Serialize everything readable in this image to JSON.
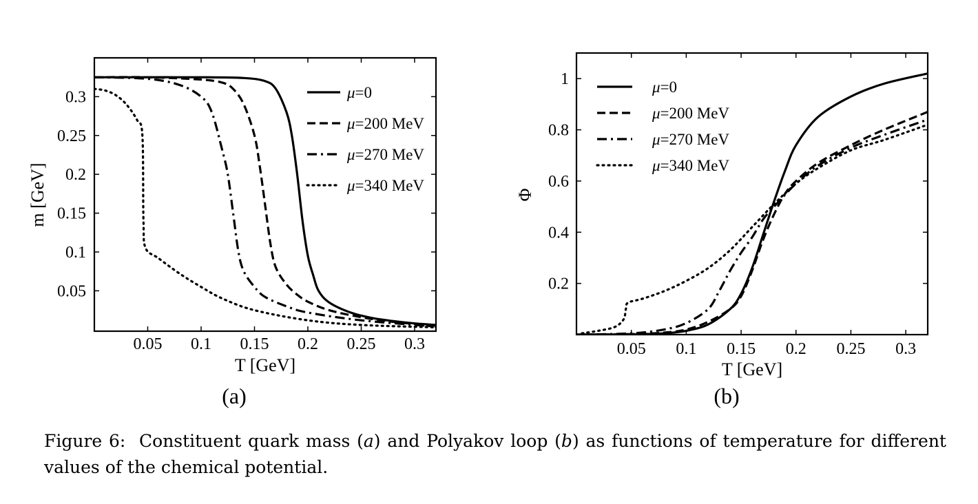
{
  "figure": {
    "caption": {
      "label": "Figure 6:",
      "part1": "Constituent quark mass (",
      "ref_a": "a",
      "part2": ") and Polyakov loop (",
      "ref_b": "b",
      "part3": ") as functions of temperature for different values of the chemical potential."
    }
  },
  "chart_data": [
    {
      "type": "line",
      "id": "a",
      "panel_label": "(a)",
      "xlabel": "T [GeV]",
      "ylabel": "m [GeV]",
      "xlim": [
        0.0,
        0.32
      ],
      "ylim": [
        -0.002,
        0.35
      ],
      "xticks": [
        0.05,
        0.1,
        0.15,
        0.2,
        0.25,
        0.3
      ],
      "xtick_labels": [
        "0.05",
        "0.1",
        "0.15",
        "0.2",
        "0.25",
        "0.3"
      ],
      "yticks": [
        0.05,
        0.1,
        0.15,
        0.2,
        0.25,
        0.3
      ],
      "ytick_labels": [
        "0.05",
        "0.1",
        "0.15",
        "0.2",
        "0.25",
        "0.3"
      ],
      "legend": "top-right",
      "series": [
        {
          "name": "μ=0",
          "mu": "μ",
          "value": "=0",
          "style": "solid",
          "x": [
            0,
            0.05,
            0.1,
            0.14,
            0.16,
            0.17,
            0.18,
            0.185,
            0.19,
            0.195,
            0.2,
            0.205,
            0.21,
            0.22,
            0.24,
            0.26,
            0.28,
            0.3,
            0.32
          ],
          "y": [
            0.325,
            0.325,
            0.325,
            0.324,
            0.32,
            0.31,
            0.28,
            0.25,
            0.2,
            0.14,
            0.095,
            0.07,
            0.05,
            0.035,
            0.022,
            0.015,
            0.011,
            0.008,
            0.006
          ]
        },
        {
          "name": "μ=200 MeV",
          "mu": "μ",
          "value": "=200 MeV",
          "style": "dashed",
          "x": [
            0,
            0.05,
            0.1,
            0.12,
            0.13,
            0.14,
            0.15,
            0.155,
            0.16,
            0.165,
            0.17,
            0.18,
            0.19,
            0.2,
            0.22,
            0.25,
            0.28,
            0.32
          ],
          "y": [
            0.325,
            0.325,
            0.322,
            0.318,
            0.31,
            0.29,
            0.25,
            0.21,
            0.16,
            0.11,
            0.08,
            0.058,
            0.045,
            0.036,
            0.025,
            0.016,
            0.01,
            0.005
          ]
        },
        {
          "name": "μ=270 MeV",
          "mu": "μ",
          "value": "=270 MeV",
          "style": "dashdot",
          "x": [
            0,
            0.05,
            0.08,
            0.1,
            0.11,
            0.12,
            0.125,
            0.13,
            0.135,
            0.14,
            0.15,
            0.16,
            0.18,
            0.2,
            0.25,
            0.32
          ],
          "y": [
            0.325,
            0.323,
            0.315,
            0.3,
            0.28,
            0.23,
            0.2,
            0.15,
            0.1,
            0.075,
            0.055,
            0.042,
            0.03,
            0.022,
            0.012,
            0.004
          ]
        },
        {
          "name": "μ=340 MeV",
          "mu": "μ",
          "value": "=340 MeV",
          "style": "dotted",
          "x": [
            0,
            0.01,
            0.02,
            0.03,
            0.04,
            0.045,
            0.046,
            0.048,
            0.06,
            0.08,
            0.1,
            0.12,
            0.15,
            0.2,
            0.25,
            0.32
          ],
          "y": [
            0.31,
            0.308,
            0.302,
            0.29,
            0.27,
            0.25,
            0.14,
            0.105,
            0.092,
            0.072,
            0.055,
            0.04,
            0.025,
            0.012,
            0.006,
            0.003
          ]
        }
      ]
    },
    {
      "type": "line",
      "id": "b",
      "panel_label": "(b)",
      "xlabel": "T [GeV]",
      "ylabel": "Φ",
      "xlim": [
        0.0,
        0.32
      ],
      "ylim": [
        0.0,
        1.1
      ],
      "xticks": [
        0.05,
        0.1,
        0.15,
        0.2,
        0.25,
        0.3
      ],
      "xtick_labels": [
        "0.05",
        "0.1",
        "0.15",
        "0.2",
        "0.25",
        "0.3"
      ],
      "yticks": [
        0.2,
        0.4,
        0.6,
        0.8,
        1.0
      ],
      "ytick_labels": [
        "0.2",
        "0.4",
        "0.6",
        "0.8",
        "1"
      ],
      "legend": "top-left",
      "series": [
        {
          "name": "μ=0",
          "mu": "μ",
          "value": "=0",
          "style": "solid",
          "x": [
            0,
            0.05,
            0.08,
            0.1,
            0.12,
            0.14,
            0.15,
            0.16,
            0.17,
            0.18,
            0.19,
            0.2,
            0.22,
            0.25,
            0.28,
            0.32
          ],
          "y": [
            0,
            0.001,
            0.005,
            0.015,
            0.04,
            0.1,
            0.16,
            0.26,
            0.39,
            0.52,
            0.64,
            0.74,
            0.85,
            0.93,
            0.98,
            1.02
          ]
        },
        {
          "name": "μ=200 MeV",
          "mu": "μ",
          "value": "=200 MeV",
          "style": "dashed",
          "x": [
            0,
            0.05,
            0.08,
            0.1,
            0.12,
            0.14,
            0.15,
            0.16,
            0.17,
            0.18,
            0.19,
            0.2,
            0.22,
            0.25,
            0.28,
            0.32
          ],
          "y": [
            0,
            0.002,
            0.008,
            0.02,
            0.05,
            0.1,
            0.15,
            0.25,
            0.37,
            0.47,
            0.55,
            0.6,
            0.67,
            0.74,
            0.8,
            0.87
          ]
        },
        {
          "name": "μ=270 MeV",
          "mu": "μ",
          "value": "=270 MeV",
          "style": "dashdot",
          "x": [
            0,
            0.05,
            0.08,
            0.1,
            0.12,
            0.13,
            0.14,
            0.15,
            0.16,
            0.17,
            0.18,
            0.2,
            0.22,
            0.25,
            0.28,
            0.32
          ],
          "y": [
            0,
            0.005,
            0.02,
            0.045,
            0.1,
            0.17,
            0.25,
            0.32,
            0.38,
            0.45,
            0.5,
            0.59,
            0.66,
            0.73,
            0.78,
            0.84
          ]
        },
        {
          "name": "μ=340 MeV",
          "mu": "μ",
          "value": "=340 MeV",
          "style": "dotted",
          "x": [
            0.005,
            0.02,
            0.035,
            0.043,
            0.045,
            0.047,
            0.06,
            0.08,
            0.1,
            0.12,
            0.14,
            0.16,
            0.18,
            0.2,
            0.22,
            0.25,
            0.28,
            0.32
          ],
          "y": [
            0.005,
            0.015,
            0.03,
            0.06,
            0.1,
            0.125,
            0.14,
            0.17,
            0.21,
            0.26,
            0.33,
            0.42,
            0.51,
            0.59,
            0.65,
            0.72,
            0.76,
            0.82
          ]
        }
      ]
    }
  ]
}
